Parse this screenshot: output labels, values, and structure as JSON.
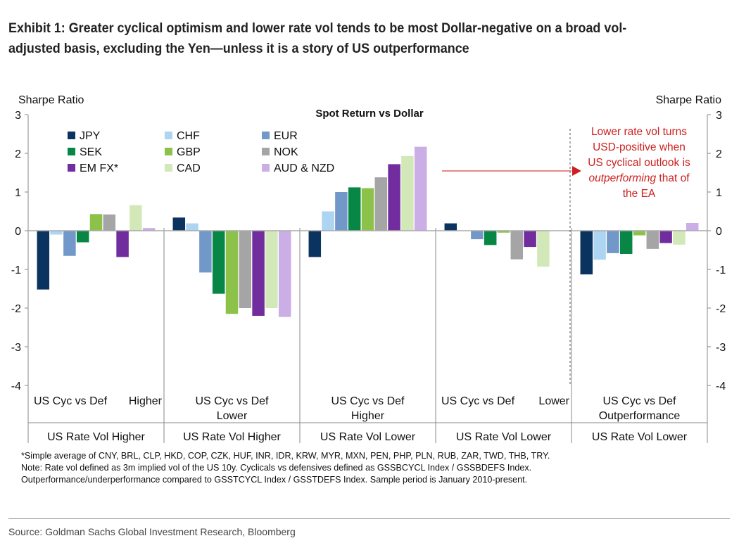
{
  "title": "Exhibit 1: Greater cyclical optimism and lower rate vol tends to be most Dollar-negative on a broad vol-adjusted basis, excluding the Yen—unless it is a story of US outperformance",
  "footnotes": [
    "*Simple average of CNY, BRL, CLP, HKD, COP, CZK, HUF, INR, IDR, KRW, MYR, MXN, PEN, PHP, PLN, RUB, ZAR, TWD, THB, TRY.",
    "Note: Rate vol defined as 3m implied vol of the US 10y. Cyclicals vs defensives defined as GSSBCYCL Index / GSSBDEFS Index.",
    "Outperformance/underperformance compared to GSSTCYCL Index / GSSTDEFS Index. Sample period is January 2010-present."
  ],
  "source": "Source: Goldman Sachs Global Investment Research, Bloomberg",
  "chart_data": {
    "type": "bar",
    "title": "Spot Return vs Dollar",
    "ylabel_left": "Sharpe Ratio",
    "ylabel_right": "Sharpe Ratio",
    "ylim": [
      -4,
      3
    ],
    "yticks": [
      "3",
      "2",
      "1",
      "0",
      "-1",
      "-2",
      "-3",
      "-4"
    ],
    "categories": [
      {
        "line1": "US Cyc vs Def",
        "line1b": "Higher",
        "line2": "",
        "group": "US Rate Vol Higher"
      },
      {
        "line1": "US Cyc vs Def",
        "line1b": "",
        "line2": "Lower",
        "group": "US Rate Vol Higher"
      },
      {
        "line1": "US Cyc vs Def",
        "line1b": "",
        "line2": "Higher",
        "group": "US Rate Vol Lower"
      },
      {
        "line1": "US Cyc vs Def",
        "line1b": "Lower",
        "line2": "",
        "group": "US Rate Vol Lower"
      },
      {
        "line1": "US Cyc vs Def",
        "line1b": "",
        "line2": "Outperformance",
        "group": "US Rate Vol Lower"
      }
    ],
    "series": [
      {
        "name": "JPY",
        "color": "#0b3360",
        "values": [
          -1.52,
          0.34,
          -0.68,
          0.19,
          -1.13
        ]
      },
      {
        "name": "CHF",
        "color": "#add4f0",
        "values": [
          -0.1,
          0.19,
          0.5,
          0,
          -0.75
        ]
      },
      {
        "name": "EUR",
        "color": "#7198c8",
        "values": [
          -0.65,
          -1.08,
          1.0,
          -0.22,
          -0.58
        ]
      },
      {
        "name": "SEK",
        "color": "#078646",
        "values": [
          -0.3,
          -1.63,
          1.12,
          -0.37,
          -0.6
        ]
      },
      {
        "name": "GBP",
        "color": "#8cc14a",
        "values": [
          0.43,
          -2.15,
          1.1,
          -0.05,
          -0.12
        ]
      },
      {
        "name": "NOK",
        "color": "#a5a5a5",
        "values": [
          0.42,
          -2.0,
          1.38,
          -0.74,
          -0.47
        ]
      },
      {
        "name": "EM FX*",
        "color": "#712d9e",
        "values": [
          -0.68,
          -2.2,
          1.72,
          -0.42,
          -0.32
        ]
      },
      {
        "name": "CAD",
        "color": "#d3e8b8",
        "values": [
          0.66,
          -2.0,
          1.93,
          -0.93,
          -0.36
        ]
      },
      {
        "name": "AUD & NZD",
        "color": "#cbaee6",
        "values": [
          0.07,
          -2.23,
          2.17,
          0,
          0.2
        ]
      }
    ],
    "annotation": {
      "parts": [
        "Lower rate vol turns",
        "USD-positive when",
        "US cyclical outlook is",
        "outperforming",
        " that of",
        "the EA"
      ],
      "color": "#cc1f1f"
    },
    "legend": "top-left"
  }
}
